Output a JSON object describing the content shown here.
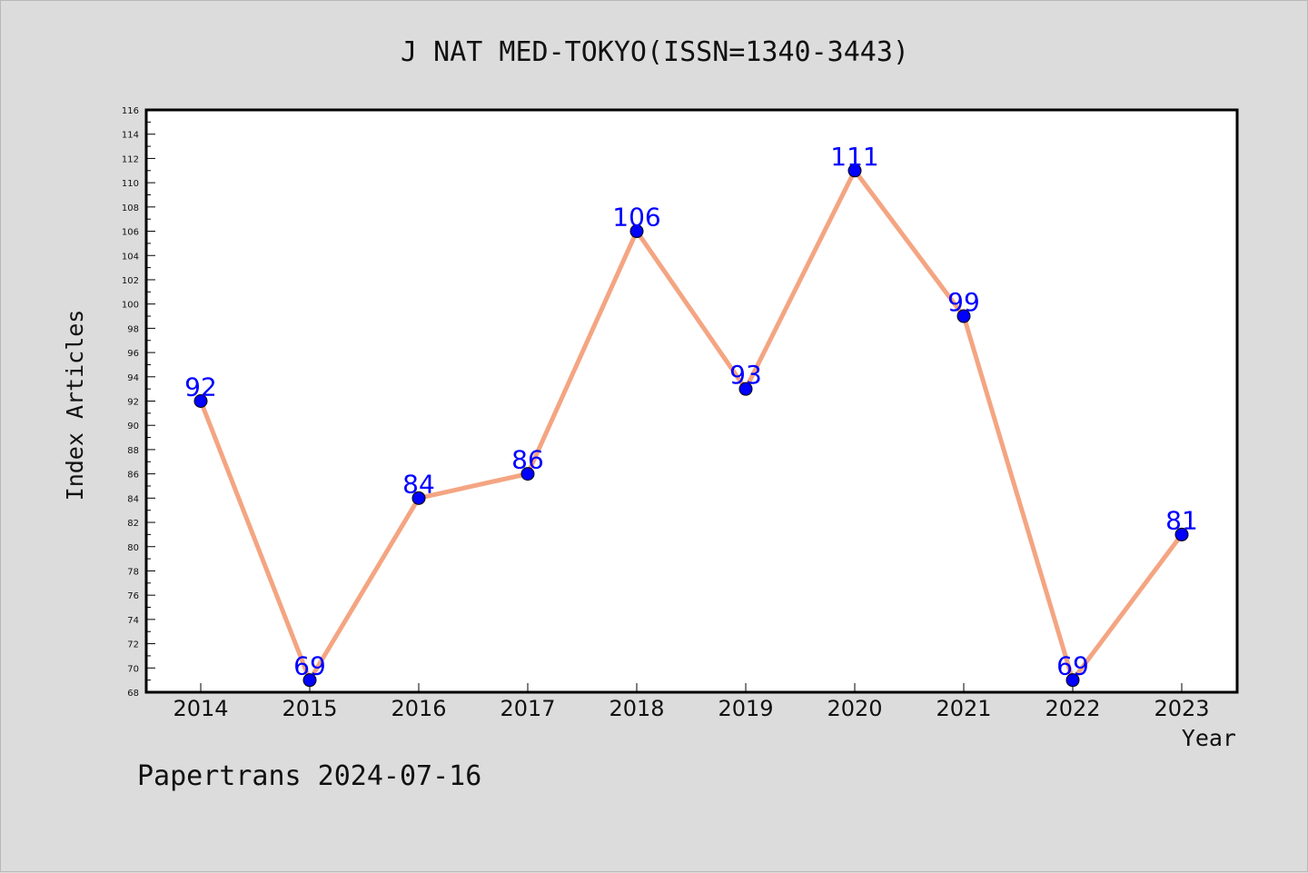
{
  "chart_data": {
    "type": "line",
    "title": "J NAT MED-TOKYO(ISSN=1340-3443)",
    "xlabel": "Year",
    "ylabel": "Index Articles",
    "categories": [
      "2014",
      "2015",
      "2016",
      "2017",
      "2018",
      "2019",
      "2020",
      "2021",
      "2022",
      "2023"
    ],
    "series": [
      {
        "values": [
          92,
          69,
          84,
          86,
          106,
          93,
          111,
          99,
          69,
          81
        ]
      }
    ],
    "ylim": [
      68,
      116
    ],
    "y_ticks": [
      68,
      70,
      72,
      74,
      76,
      78,
      80,
      82,
      84,
      86,
      88,
      90,
      92,
      94,
      96,
      98,
      100,
      102,
      104,
      106,
      108,
      110,
      112,
      114,
      116
    ],
    "grid": false,
    "legend": "none",
    "colors": {
      "line": "#f4a582",
      "marker": "#0000ff",
      "data_label": "#0000ff",
      "background": "#dcdcdc",
      "plot_area": "#ffffff"
    }
  },
  "footer": {
    "text": "Papertrans 2024-07-16"
  }
}
